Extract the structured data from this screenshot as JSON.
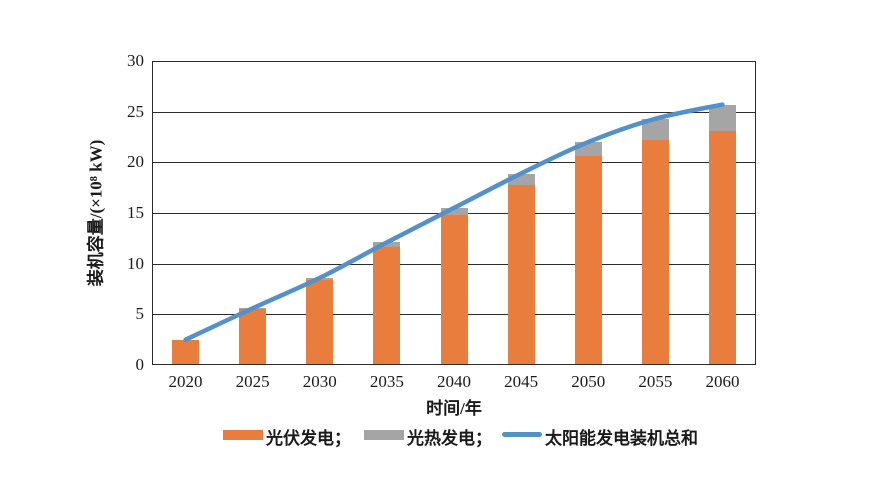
{
  "chart_data": {
    "type": "bar",
    "subtype": "stacked-bar-with-line",
    "categories": [
      "2020",
      "2025",
      "2030",
      "2035",
      "2040",
      "2045",
      "2050",
      "2055",
      "2060"
    ],
    "series": [
      {
        "name": "光伏发电",
        "type": "bar",
        "color": "#E87D3E",
        "values": [
          2.5,
          5.5,
          8.4,
          11.6,
          14.8,
          17.8,
          20.6,
          22.2,
          23.1
        ]
      },
      {
        "name": "光热发电",
        "type": "bar",
        "color": "#A5A5A5",
        "values": [
          0.0,
          0.1,
          0.2,
          0.5,
          0.7,
          1.1,
          1.4,
          2.1,
          2.6
        ]
      },
      {
        "name": "太阳能发电装机总和",
        "type": "line",
        "color": "#5291C9",
        "values": [
          2.5,
          5.6,
          8.6,
          12.1,
          15.5,
          18.9,
          22.0,
          24.3,
          25.7
        ]
      }
    ],
    "stacked": true,
    "title": "",
    "xlabel": "时间/年",
    "ylabel": "装机容量/(×10⁸ kW)",
    "ylim": [
      0,
      30
    ],
    "y_ticks": [
      0,
      5,
      10,
      15,
      20,
      25,
      30
    ],
    "grid": true,
    "grid_color": "#2b2b2b",
    "legend_position": "bottom"
  },
  "legend": {
    "items": [
      {
        "label": "光伏发电；",
        "swatch": "bar",
        "color": "#E87D3E"
      },
      {
        "label": "光热发电；",
        "swatch": "bar",
        "color": "#A5A5A5"
      },
      {
        "label": "太阳能发电装机总和",
        "swatch": "line",
        "color": "#5291C9"
      }
    ]
  }
}
